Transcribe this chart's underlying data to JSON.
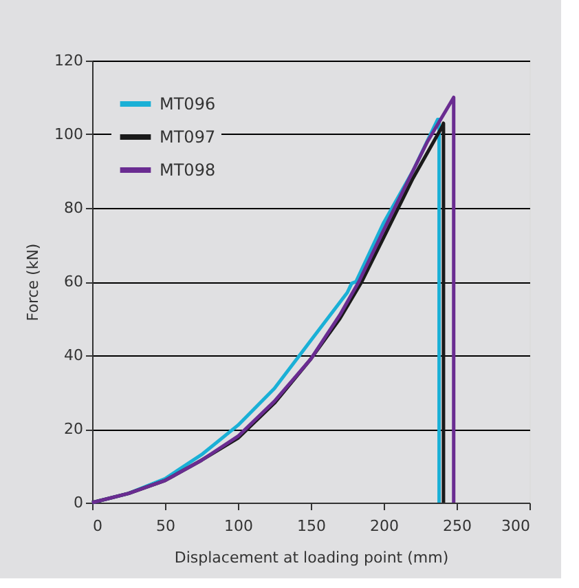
{
  "chart_data": {
    "type": "line",
    "xlabel": "Displacement at loading point (mm)",
    "ylabel": "Force (kN)",
    "xlim": [
      0,
      300
    ],
    "xticks": [
      0,
      50,
      100,
      150,
      200,
      250,
      300
    ],
    "ylim": [
      0,
      120
    ],
    "yticks": [
      0,
      20,
      40,
      60,
      80,
      100,
      120
    ],
    "grid": "y",
    "legend": "top left",
    "line_style": "solid",
    "marker": "none",
    "series": [
      {
        "name": "MT096",
        "color": "#1ab0d6",
        "x": [
          0,
          25,
          50,
          75,
          100,
          125,
          150,
          175,
          178,
          181,
          200,
          220,
          237,
          238,
          238
        ],
        "values": [
          0,
          2.5,
          6.5,
          13,
          21,
          31,
          44,
          57,
          59.5,
          60,
          76,
          90,
          104,
          104,
          0
        ]
      },
      {
        "name": "MT097",
        "color": "#1a1a1a",
        "x": [
          0,
          25,
          50,
          75,
          100,
          125,
          150,
          170,
          185,
          200,
          220,
          240,
          241,
          241
        ],
        "values": [
          0,
          2.5,
          6,
          11.5,
          17.5,
          27,
          39,
          50,
          60,
          72,
          88,
          102,
          103,
          0
        ]
      },
      {
        "name": "MT098",
        "color": "#6a2c91",
        "x": [
          0,
          25,
          50,
          75,
          100,
          125,
          150,
          170,
          183,
          200,
          230,
          248,
          248
        ],
        "values": [
          0,
          2.5,
          6,
          11.5,
          18,
          27.5,
          39,
          51,
          60,
          74,
          98,
          110,
          0
        ]
      }
    ]
  }
}
